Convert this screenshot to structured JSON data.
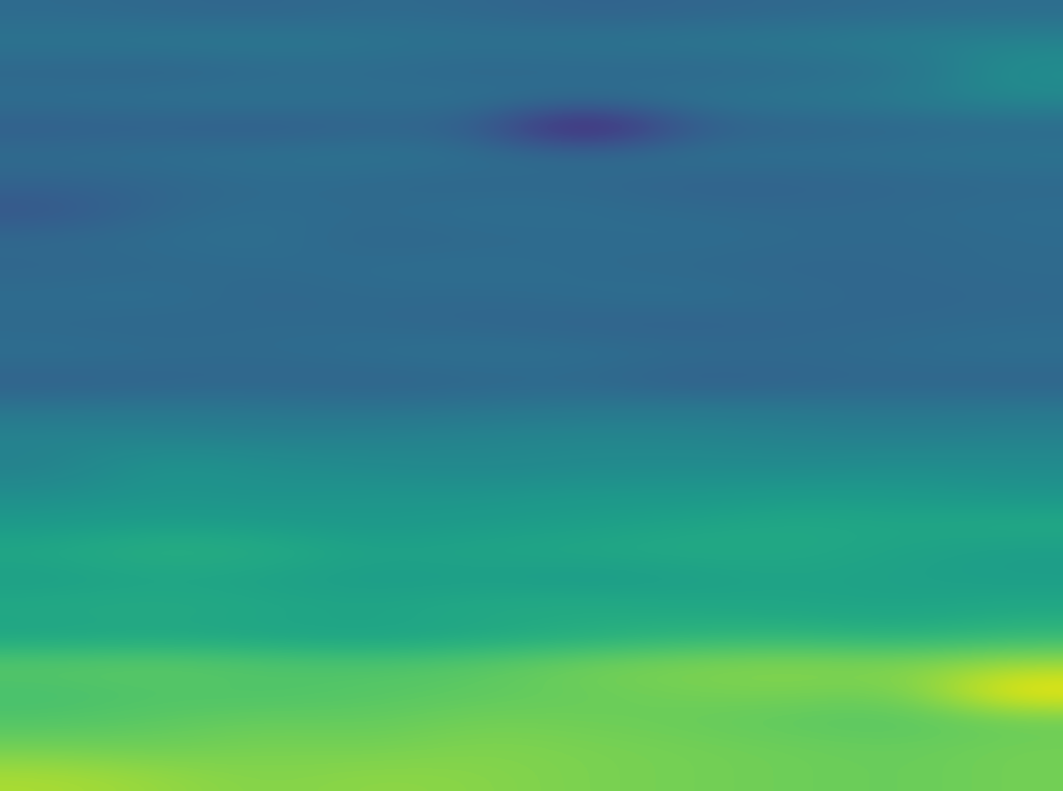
{
  "chart_data": {
    "type": "heatmap",
    "color": "viridis",
    "tick_labels": false,
    "cells": [
      [
        0.38,
        0.37,
        0.36,
        0.38,
        0.37,
        0.35,
        0.36,
        0.37,
        0.38,
        0.39
      ],
      [
        0.42,
        0.43,
        0.44,
        0.42,
        0.41,
        0.42,
        0.43,
        0.44,
        0.46,
        0.48
      ],
      [
        0.36,
        0.35,
        0.37,
        0.38,
        0.36,
        0.37,
        0.36,
        0.38,
        0.4,
        0.52
      ],
      [
        0.4,
        0.41,
        0.42,
        0.4,
        0.41,
        0.4,
        0.42,
        0.43,
        0.45,
        0.5
      ],
      [
        0.33,
        0.34,
        0.32,
        0.35,
        0.34,
        0.05,
        0.33,
        0.35,
        0.36,
        0.37
      ],
      [
        0.39,
        0.4,
        0.41,
        0.42,
        0.4,
        0.39,
        0.41,
        0.4,
        0.41,
        0.42
      ],
      [
        0.35,
        0.36,
        0.38,
        0.37,
        0.36,
        0.37,
        0.34,
        0.35,
        0.36,
        0.37
      ],
      [
        0.3,
        0.37,
        0.39,
        0.38,
        0.4,
        0.39,
        0.38,
        0.37,
        0.38,
        0.39
      ],
      [
        0.38,
        0.39,
        0.4,
        0.36,
        0.37,
        0.38,
        0.39,
        0.38,
        0.37,
        0.38
      ],
      [
        0.36,
        0.37,
        0.38,
        0.39,
        0.4,
        0.38,
        0.37,
        0.36,
        0.37,
        0.38
      ],
      [
        0.39,
        0.4,
        0.36,
        0.38,
        0.37,
        0.39,
        0.4,
        0.38,
        0.36,
        0.37
      ],
      [
        0.37,
        0.36,
        0.38,
        0.37,
        0.36,
        0.35,
        0.34,
        0.36,
        0.37,
        0.38
      ],
      [
        0.4,
        0.39,
        0.38,
        0.4,
        0.41,
        0.4,
        0.39,
        0.38,
        0.39,
        0.4
      ],
      [
        0.34,
        0.35,
        0.36,
        0.35,
        0.36,
        0.37,
        0.33,
        0.35,
        0.36,
        0.35
      ],
      [
        0.42,
        0.43,
        0.42,
        0.41,
        0.42,
        0.43,
        0.44,
        0.43,
        0.42,
        0.43
      ],
      [
        0.48,
        0.47,
        0.46,
        0.47,
        0.48,
        0.49,
        0.48,
        0.47,
        0.46,
        0.47
      ],
      [
        0.46,
        0.55,
        0.52,
        0.5,
        0.49,
        0.5,
        0.51,
        0.5,
        0.52,
        0.51
      ],
      [
        0.52,
        0.54,
        0.53,
        0.55,
        0.54,
        0.56,
        0.55,
        0.57,
        0.56,
        0.54
      ],
      [
        0.56,
        0.58,
        0.57,
        0.55,
        0.57,
        0.58,
        0.6,
        0.62,
        0.61,
        0.63
      ],
      [
        0.62,
        0.66,
        0.64,
        0.6,
        0.61,
        0.62,
        0.63,
        0.62,
        0.6,
        0.58
      ],
      [
        0.58,
        0.6,
        0.59,
        0.57,
        0.58,
        0.56,
        0.58,
        0.6,
        0.59,
        0.58
      ],
      [
        0.63,
        0.64,
        0.62,
        0.61,
        0.63,
        0.64,
        0.62,
        0.61,
        0.6,
        0.62
      ],
      [
        0.6,
        0.61,
        0.6,
        0.59,
        0.61,
        0.63,
        0.66,
        0.67,
        0.65,
        0.68
      ],
      [
        0.76,
        0.77,
        0.75,
        0.74,
        0.76,
        0.8,
        0.82,
        0.83,
        0.82,
        0.86
      ],
      [
        0.72,
        0.74,
        0.73,
        0.75,
        0.76,
        0.78,
        0.8,
        0.81,
        0.79,
        1.0
      ],
      [
        0.74,
        0.76,
        0.78,
        0.77,
        0.8,
        0.79,
        0.78,
        0.76,
        0.75,
        0.78
      ],
      [
        0.8,
        0.79,
        0.81,
        0.8,
        0.82,
        0.81,
        0.8,
        0.79,
        0.78,
        0.8
      ],
      [
        0.88,
        0.85,
        0.82,
        0.84,
        0.83,
        0.81,
        0.8,
        0.79,
        0.78,
        0.8
      ]
    ]
  }
}
